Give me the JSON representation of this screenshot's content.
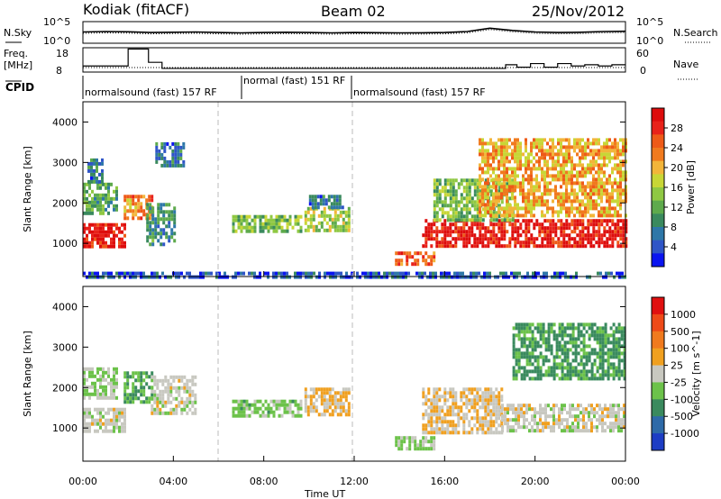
{
  "header": {
    "station": "Kodiak (fitACF)",
    "beam": "Beam 02",
    "date": "25/Nov/2012"
  },
  "noise_panel": {
    "left_label": "N.Sky",
    "right_label": "N.Search",
    "left_ticks": [
      "10^5",
      "10^0"
    ],
    "right_ticks": [
      "10^5",
      "10^0"
    ]
  },
  "freq_panel": {
    "left_label_line1": "Freq.",
    "left_label_line2": "[MHz]",
    "left_ticks": [
      "18",
      "8"
    ],
    "right_label": "Nave",
    "right_ticks": [
      "60",
      "0"
    ]
  },
  "cpid_panel": {
    "label": "CPID",
    "segments": [
      {
        "text": "normalsound (fast) 157 RF"
      },
      {
        "text": "normal (fast) 151 RF"
      },
      {
        "text": "normalsound (fast) 157 RF"
      }
    ]
  },
  "x_axis": {
    "label": "Time UT",
    "ticks": [
      "00:00",
      "04:00",
      "08:00",
      "12:00",
      "16:00",
      "20:00",
      "00:00"
    ]
  },
  "y_axis_label": "Slant Range [km]",
  "y_ticks": [
    "1000",
    "2000",
    "3000",
    "4000"
  ],
  "colorbars": {
    "power": {
      "label": "Power [dB]",
      "ticks": [
        "4",
        "8",
        "12",
        "16",
        "20",
        "24",
        "28"
      ],
      "colors": [
        "#0a14f0",
        "#2f55c7",
        "#2e77a8",
        "#3a8a5e",
        "#5eaa4c",
        "#8fc843",
        "#c8d636",
        "#f2b53a",
        "#f07a1e",
        "#ee5a18",
        "#e8221a",
        "#dd0d0d"
      ]
    },
    "velocity": {
      "label": "Velocity [m s^-1]",
      "ticks": [
        "1000",
        "500",
        "100",
        "25",
        "-25",
        "-100",
        "-500",
        "-1000"
      ],
      "colors": [
        "#1d3dc4",
        "#2e6aa8",
        "#3a8a5e",
        "#6cc24a",
        "#c8c8c0",
        "#f0a020",
        "#f07a1e",
        "#ee4a18",
        "#e01010"
      ]
    }
  },
  "chart_data": [
    {
      "type": "line",
      "title": "Kodiak (fitACF)",
      "panel": "noise",
      "x_unit": "hours UT",
      "y_scale": "log",
      "ylim": [
        1,
        100000
      ],
      "series": [
        {
          "name": "N.Sky",
          "x": [
            0,
            1,
            2,
            3,
            4,
            5,
            6,
            7,
            8,
            9,
            10,
            11,
            12,
            13,
            14,
            15,
            16,
            17,
            18,
            19,
            20,
            21,
            22,
            23,
            24
          ],
          "values": [
            400,
            500,
            450,
            300,
            350,
            400,
            300,
            250,
            300,
            350,
            300,
            250,
            300,
            280,
            250,
            260,
            300,
            500,
            3000,
            900,
            400,
            300,
            350,
            500,
            600
          ]
        },
        {
          "name": "N.Search",
          "x": [
            0,
            1,
            2,
            3,
            4,
            5,
            6,
            7,
            8,
            9,
            10,
            11,
            12,
            13,
            14,
            15,
            16,
            17,
            18,
            19,
            20,
            21,
            22,
            23,
            24
          ],
          "values": [
            200,
            250,
            220,
            150,
            180,
            200,
            150,
            120,
            150,
            170,
            150,
            120,
            150,
            140,
            120,
            130,
            150,
            250,
            1500,
            450,
            200,
            150,
            170,
            250,
            300
          ]
        }
      ]
    },
    {
      "type": "line",
      "panel": "frequency",
      "x_unit": "hours UT",
      "ylim": [
        8,
        18
      ],
      "series": [
        {
          "name": "Freq.",
          "x": [
            0,
            1.2,
            2,
            2.9,
            3.5,
            12,
            18.7,
            19.2,
            19.8,
            20.4,
            21,
            21.6,
            22.2,
            22.8,
            23.4,
            24
          ],
          "values": [
            10.5,
            10.5,
            17.5,
            12,
            9.5,
            9.5,
            11,
            10,
            11.5,
            10,
            11.5,
            10.5,
            11,
            10.5,
            11,
            11
          ]
        },
        {
          "name": "Nave",
          "x": [
            0,
            24
          ],
          "values": [
            10,
            10
          ]
        }
      ]
    },
    {
      "type": "heatmap",
      "title": "Power",
      "x_unit": "hours UT",
      "ylabel": "Slant Range [km]",
      "ylim": [
        180,
        4500
      ],
      "colorbar_label": "Power [dB]",
      "colorbar_range": [
        2,
        30
      ],
      "regions": [
        {
          "t0": 0.0,
          "t1": 1.8,
          "r0": 900,
          "r1": 1500,
          "value": 28
        },
        {
          "t0": 0.0,
          "t1": 1.5,
          "r0": 1700,
          "r1": 2500,
          "value": 12
        },
        {
          "t0": 0.2,
          "t1": 0.9,
          "r0": 2500,
          "r1": 3100,
          "value": 8
        },
        {
          "t0": 1.8,
          "t1": 3.0,
          "r0": 1600,
          "r1": 2200,
          "value": 22
        },
        {
          "t0": 2.8,
          "t1": 4.1,
          "r0": 1000,
          "r1": 2000,
          "value": 10
        },
        {
          "t0": 3.2,
          "t1": 4.4,
          "r0": 2900,
          "r1": 3500,
          "value": 8
        },
        {
          "t0": 6.6,
          "t1": 9.7,
          "r0": 1300,
          "r1": 1700,
          "value": 14
        },
        {
          "t0": 9.8,
          "t1": 11.8,
          "r0": 1300,
          "r1": 1900,
          "value": 16
        },
        {
          "t0": 10.0,
          "t1": 11.5,
          "r0": 1900,
          "r1": 2200,
          "value": 8
        },
        {
          "t0": 13.8,
          "t1": 15.5,
          "r0": 500,
          "r1": 800,
          "value": 24
        },
        {
          "t0": 15.0,
          "t1": 24.0,
          "r0": 900,
          "r1": 1600,
          "value": 28
        },
        {
          "t0": 15.5,
          "t1": 19.0,
          "r0": 1600,
          "r1": 2600,
          "value": 14
        },
        {
          "t0": 17.5,
          "t1": 24.0,
          "r0": 1700,
          "r1": 3600,
          "value": 20
        },
        {
          "t0": 0.0,
          "t1": 24.0,
          "r0": 180,
          "r1": 300,
          "value": 6
        }
      ]
    },
    {
      "type": "heatmap",
      "title": "Velocity",
      "x_unit": "hours UT",
      "ylabel": "Slant Range [km]",
      "ylim": [
        180,
        4500
      ],
      "colorbar_label": "Velocity [m s^-1]",
      "colorbar_range": [
        -1000,
        1000
      ],
      "regions": [
        {
          "t0": 0.0,
          "t1": 1.8,
          "r0": 900,
          "r1": 1500,
          "value": 0
        },
        {
          "t0": 0.0,
          "t1": 1.5,
          "r0": 1700,
          "r1": 2500,
          "value": -100
        },
        {
          "t0": 1.8,
          "t1": 3.0,
          "r0": 1600,
          "r1": 2400,
          "value": -300
        },
        {
          "t0": 3.0,
          "t1": 5.0,
          "r0": 1400,
          "r1": 2300,
          "value": 0
        },
        {
          "t0": 6.6,
          "t1": 9.7,
          "r0": 1300,
          "r1": 1700,
          "value": -200
        },
        {
          "t0": 9.8,
          "t1": 11.8,
          "r0": 1300,
          "r1": 2000,
          "value": 150
        },
        {
          "t0": 13.8,
          "t1": 15.5,
          "r0": 500,
          "r1": 800,
          "value": -150
        },
        {
          "t0": 15.0,
          "t1": 18.5,
          "r0": 900,
          "r1": 2000,
          "value": 100
        },
        {
          "t0": 18.5,
          "t1": 24.0,
          "r0": 900,
          "r1": 1600,
          "value": 0
        },
        {
          "t0": 19.0,
          "t1": 24.0,
          "r0": 2200,
          "r1": 3600,
          "value": -400
        }
      ]
    }
  ]
}
